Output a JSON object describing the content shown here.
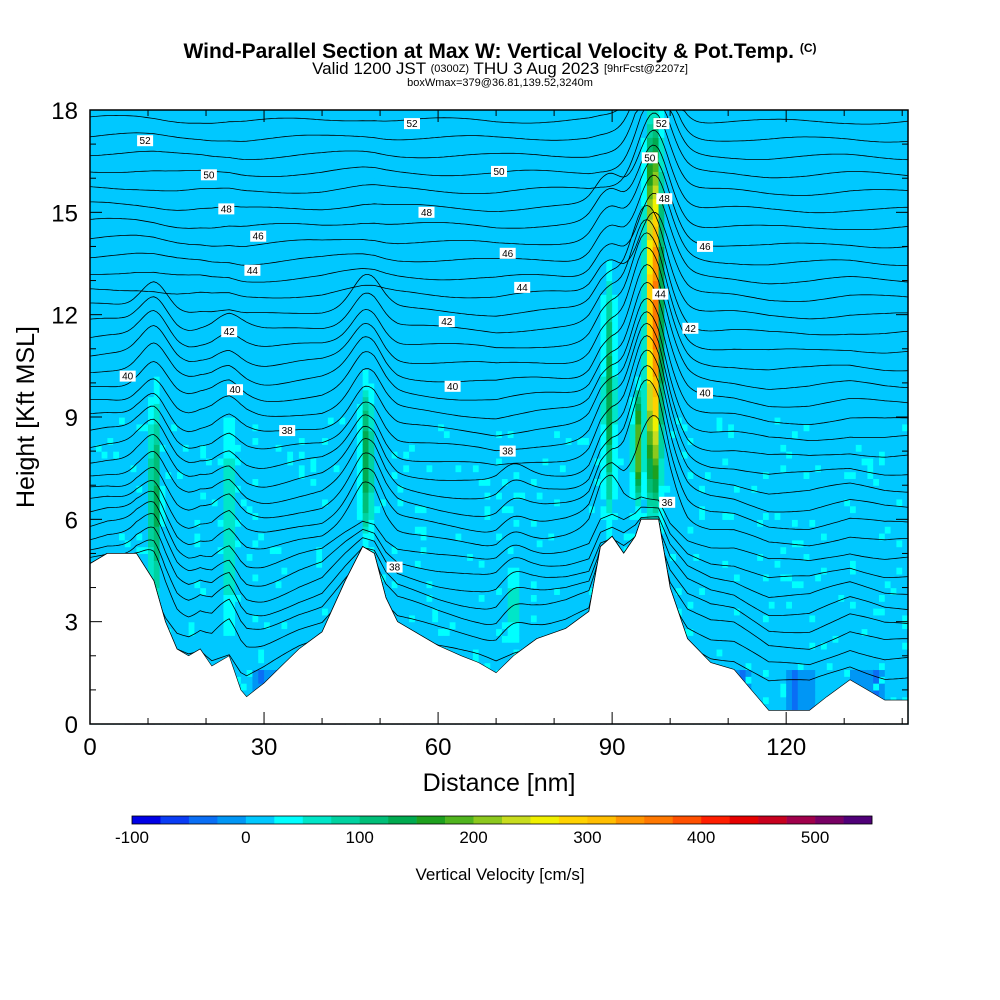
{
  "header": {
    "title": "Wind-Parallel Section at Max W: Vertical Velocity & Pot.Temp.",
    "title_mark": "(C)",
    "valid_prefix": "Valid 1200 JST",
    "valid_utc": "(0300Z)",
    "valid_date": "THU 3 Aug 2023",
    "forecast_info": "[9hrFcst@2207z]",
    "box_info": "boxWmax=379@36.81,139.52,3240m"
  },
  "chart_data": {
    "type": "heatmap",
    "xlabel": "Distance [nm]",
    "ylabel": "Height [Kft MSL]",
    "xlim": [
      0,
      141
    ],
    "ylim": [
      0,
      18
    ],
    "x_ticks": [
      "0",
      "30",
      "60",
      "90",
      "120"
    ],
    "y_ticks": [
      "0",
      "3",
      "6",
      "9",
      "12",
      "15",
      "18"
    ],
    "colorbar": {
      "label": "Vertical Velocity [cm/s]",
      "range": [
        -100,
        550
      ],
      "tick_labels": [
        "-100",
        "0",
        "100",
        "200",
        "300",
        "400",
        "500"
      ],
      "colors": [
        "#0000e6",
        "#0a3cf5",
        "#0a6ef5",
        "#0096f5",
        "#00c8ff",
        "#00ffff",
        "#00e6c8",
        "#00d2a0",
        "#00be78",
        "#00aa50",
        "#1ea01e",
        "#50b41e",
        "#8cc81e",
        "#c8dc1e",
        "#f0f000",
        "#ffd200",
        "#ffbe00",
        "#ff9600",
        "#ff7800",
        "#ff5000",
        "#ff1e00",
        "#e60000",
        "#c8001e",
        "#a0004b",
        "#780064",
        "#500078"
      ]
    },
    "terrain": [
      {
        "x": 0,
        "z": 4.7
      },
      {
        "x": 3,
        "z": 5.0
      },
      {
        "x": 8,
        "z": 5.0
      },
      {
        "x": 11,
        "z": 4.2
      },
      {
        "x": 13,
        "z": 3.0
      },
      {
        "x": 15,
        "z": 2.2
      },
      {
        "x": 17,
        "z": 2.0
      },
      {
        "x": 19,
        "z": 2.2
      },
      {
        "x": 21,
        "z": 1.7
      },
      {
        "x": 24,
        "z": 2.0
      },
      {
        "x": 26,
        "z": 1.0
      },
      {
        "x": 27,
        "z": 0.8
      },
      {
        "x": 30,
        "z": 1.2
      },
      {
        "x": 33,
        "z": 1.7
      },
      {
        "x": 36,
        "z": 2.2
      },
      {
        "x": 40,
        "z": 2.7
      },
      {
        "x": 44,
        "z": 4.2
      },
      {
        "x": 47,
        "z": 5.2
      },
      {
        "x": 49,
        "z": 5.0
      },
      {
        "x": 51,
        "z": 3.7
      },
      {
        "x": 53,
        "z": 3.0
      },
      {
        "x": 56,
        "z": 2.7
      },
      {
        "x": 60,
        "z": 2.3
      },
      {
        "x": 64,
        "z": 2.0
      },
      {
        "x": 67,
        "z": 1.8
      },
      {
        "x": 70,
        "z": 1.5
      },
      {
        "x": 73,
        "z": 2.0
      },
      {
        "x": 77,
        "z": 2.5
      },
      {
        "x": 82,
        "z": 2.8
      },
      {
        "x": 86,
        "z": 3.3
      },
      {
        "x": 88,
        "z": 5.2
      },
      {
        "x": 90,
        "z": 5.5
      },
      {
        "x": 92,
        "z": 5.0
      },
      {
        "x": 94,
        "z": 5.5
      },
      {
        "x": 95,
        "z": 6.0
      },
      {
        "x": 98,
        "z": 6.0
      },
      {
        "x": 100,
        "z": 4.0
      },
      {
        "x": 103,
        "z": 2.5
      },
      {
        "x": 107,
        "z": 1.8
      },
      {
        "x": 111,
        "z": 1.6
      },
      {
        "x": 114,
        "z": 1.0
      },
      {
        "x": 117,
        "z": 0.4
      },
      {
        "x": 124,
        "z": 0.4
      },
      {
        "x": 127,
        "z": 0.8
      },
      {
        "x": 131,
        "z": 1.3
      },
      {
        "x": 134,
        "z": 1.0
      },
      {
        "x": 137,
        "z": 0.7
      },
      {
        "x": 141,
        "z": 0.7
      }
    ],
    "updrafts": [
      {
        "x": 11.2,
        "z_base": 2.8,
        "z_top": 10.0,
        "max": 140,
        "width": 1.0
      },
      {
        "x": 24.0,
        "z_base": 2.0,
        "z_top": 9.5,
        "max": 80,
        "width": 1.3
      },
      {
        "x": 47.7,
        "z_base": 5.2,
        "z_top": 10.2,
        "max": 150,
        "width": 1.1
      },
      {
        "x": 73.0,
        "z_base": 2.0,
        "z_top": 5.0,
        "max": 70,
        "width": 1.0
      },
      {
        "x": 89.5,
        "z_base": 5.5,
        "z_top": 13.5,
        "max": 140,
        "width": 1.0
      },
      {
        "x": 94.5,
        "z_base": 6.3,
        "z_top": 10.0,
        "max": 200,
        "width": 0.9
      },
      {
        "x": 97.2,
        "z_base": 6.0,
        "z_top": 18.0,
        "max": 380,
        "width": 1.3
      }
    ],
    "isentrope_labels": [
      "36",
      "38",
      "38",
      "38",
      "40",
      "40",
      "40",
      "40",
      "42",
      "42",
      "42",
      "44",
      "44",
      "44",
      "46",
      "46",
      "46",
      "48",
      "48",
      "48",
      "50",
      "50",
      "50",
      "52",
      "52",
      "52"
    ]
  }
}
